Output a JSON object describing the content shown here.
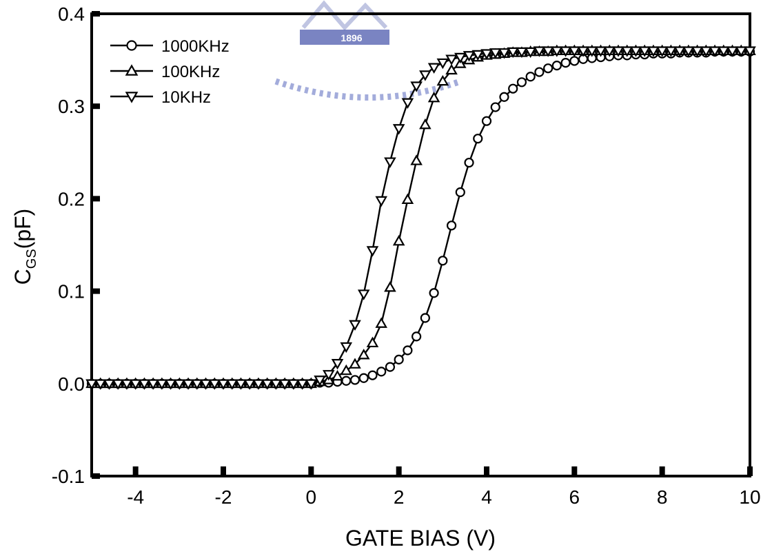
{
  "chart_data": {
    "type": "line",
    "title": "",
    "xlabel": "GATE BIAS (V)",
    "ylabel_main": "C",
    "ylabel_sub": "GS",
    "ylabel_unit": "(pF)",
    "xlim": [
      -5,
      10
    ],
    "ylim": [
      -0.1,
      0.4
    ],
    "xticks": [
      -4,
      -2,
      0,
      2,
      4,
      6,
      8,
      10
    ],
    "yticks": [
      -0.1,
      0.0,
      0.1,
      0.2,
      0.3,
      0.4
    ],
    "ytick_labels": [
      "-0.1",
      "0.0",
      "0.1",
      "0.2",
      "0.3",
      "0.4"
    ],
    "grid": false,
    "legend_position": "top-left",
    "series": [
      {
        "name": "1000KHz",
        "marker": "circle",
        "color": "#000000",
        "x": [
          -5.0,
          -4.8,
          -4.6,
          -4.4,
          -4.2,
          -4.0,
          -3.8,
          -3.6,
          -3.4,
          -3.2,
          -3.0,
          -2.8,
          -2.6,
          -2.4,
          -2.2,
          -2.0,
          -1.8,
          -1.6,
          -1.4,
          -1.2,
          -1.0,
          -0.8,
          -0.6,
          -0.4,
          -0.2,
          0.0,
          0.2,
          0.4,
          0.6,
          0.8,
          1.0,
          1.2,
          1.4,
          1.6,
          1.8,
          2.0,
          2.2,
          2.4,
          2.6,
          2.8,
          3.0,
          3.2,
          3.4,
          3.6,
          3.8,
          4.0,
          4.2,
          4.4,
          4.6,
          4.8,
          5.0,
          5.2,
          5.4,
          5.6,
          5.8,
          6.0,
          6.2,
          6.4,
          6.6,
          6.8,
          7.0,
          7.2,
          7.4,
          7.6,
          7.8,
          8.0,
          8.2,
          8.4,
          8.6,
          8.8,
          9.0,
          9.2,
          9.4,
          9.6,
          9.8,
          10.0
        ],
        "y": [
          0,
          0,
          0,
          0,
          0,
          0,
          0,
          0,
          0,
          0,
          0,
          0,
          0,
          0,
          0,
          0,
          0,
          0,
          0,
          0,
          0,
          0,
          0,
          0,
          0,
          0,
          0.001,
          0.001,
          0.002,
          0.003,
          0.004,
          0.006,
          0.009,
          0.013,
          0.018,
          0.026,
          0.036,
          0.051,
          0.071,
          0.098,
          0.133,
          0.171,
          0.207,
          0.239,
          0.265,
          0.284,
          0.299,
          0.31,
          0.319,
          0.326,
          0.332,
          0.337,
          0.341,
          0.344,
          0.347,
          0.349,
          0.351,
          0.352,
          0.353,
          0.354,
          0.355,
          0.355,
          0.356,
          0.356,
          0.357,
          0.357,
          0.357,
          0.358,
          0.358,
          0.358,
          0.358,
          0.359,
          0.359,
          0.359,
          0.359,
          0.359
        ]
      },
      {
        "name": "100KHz",
        "marker": "triangle-up",
        "color": "#000000",
        "x": [
          -5.0,
          -4.8,
          -4.6,
          -4.4,
          -4.2,
          -4.0,
          -3.8,
          -3.6,
          -3.4,
          -3.2,
          -3.0,
          -2.8,
          -2.6,
          -2.4,
          -2.2,
          -2.0,
          -1.8,
          -1.6,
          -1.4,
          -1.2,
          -1.0,
          -0.8,
          -0.6,
          -0.4,
          -0.2,
          0.0,
          0.2,
          0.4,
          0.6,
          0.8,
          1.0,
          1.2,
          1.4,
          1.6,
          1.8,
          2.0,
          2.2,
          2.4,
          2.6,
          2.8,
          3.0,
          3.2,
          3.4,
          3.6,
          3.8,
          4.0,
          4.2,
          4.4,
          4.6,
          4.8,
          5.0,
          5.2,
          5.4,
          5.6,
          5.8,
          6.0,
          6.2,
          6.4,
          6.6,
          6.8,
          7.0,
          7.2,
          7.4,
          7.6,
          7.8,
          8.0,
          8.2,
          8.4,
          8.6,
          8.8,
          9.0,
          9.2,
          9.4,
          9.6,
          9.8,
          10.0
        ],
        "y": [
          0,
          0,
          0,
          0,
          0,
          0,
          0,
          0,
          0,
          0,
          0,
          0,
          0,
          0,
          0,
          0,
          0,
          0,
          0,
          0,
          0,
          0,
          0,
          0,
          0,
          0,
          0.002,
          0.004,
          0.008,
          0.014,
          0.021,
          0.031,
          0.044,
          0.065,
          0.104,
          0.154,
          0.199,
          0.241,
          0.28,
          0.309,
          0.327,
          0.339,
          0.346,
          0.35,
          0.353,
          0.355,
          0.356,
          0.357,
          0.358,
          0.358,
          0.359,
          0.359,
          0.359,
          0.36,
          0.36,
          0.36,
          0.36,
          0.36,
          0.36,
          0.36,
          0.36,
          0.36,
          0.36,
          0.36,
          0.36,
          0.36,
          0.36,
          0.36,
          0.36,
          0.36,
          0.36,
          0.36,
          0.36,
          0.36,
          0.36,
          0.36
        ]
      },
      {
        "name": "10KHz",
        "marker": "triangle-down",
        "color": "#000000",
        "x": [
          -5.0,
          -4.8,
          -4.6,
          -4.4,
          -4.2,
          -4.0,
          -3.8,
          -3.6,
          -3.4,
          -3.2,
          -3.0,
          -2.8,
          -2.6,
          -2.4,
          -2.2,
          -2.0,
          -1.8,
          -1.6,
          -1.4,
          -1.2,
          -1.0,
          -0.8,
          -0.6,
          -0.4,
          -0.2,
          0.0,
          0.2,
          0.4,
          0.6,
          0.8,
          1.0,
          1.2,
          1.4,
          1.6,
          1.8,
          2.0,
          2.2,
          2.4,
          2.6,
          2.8,
          3.0,
          3.2,
          3.4,
          3.6,
          3.8,
          4.0,
          4.2,
          4.4,
          4.6,
          4.8,
          5.0,
          5.2,
          5.4,
          5.6,
          5.8,
          6.0,
          6.2,
          6.4,
          6.6,
          6.8,
          7.0,
          7.2,
          7.4,
          7.6,
          7.8,
          8.0,
          8.2,
          8.4,
          8.6,
          8.8,
          9.0,
          9.2,
          9.4,
          9.6,
          9.8,
          10.0
        ],
        "y": [
          0,
          0,
          0,
          0,
          0,
          0,
          0,
          0,
          0,
          0,
          0,
          0,
          0,
          0,
          0,
          0,
          0,
          0,
          0,
          0,
          0,
          0,
          0,
          0,
          0,
          0,
          0.004,
          0.01,
          0.022,
          0.04,
          0.064,
          0.097,
          0.144,
          0.198,
          0.24,
          0.276,
          0.304,
          0.322,
          0.334,
          0.342,
          0.347,
          0.351,
          0.353,
          0.355,
          0.356,
          0.357,
          0.358,
          0.358,
          0.359,
          0.359,
          0.359,
          0.36,
          0.36,
          0.36,
          0.36,
          0.36,
          0.36,
          0.36,
          0.36,
          0.36,
          0.36,
          0.36,
          0.36,
          0.36,
          0.36,
          0.36,
          0.36,
          0.36,
          0.36,
          0.36,
          0.36,
          0.36,
          0.36,
          0.36,
          0.36,
          0.36
        ]
      }
    ]
  },
  "watermark": {
    "year": "1896",
    "color": "#2f3fa0"
  }
}
